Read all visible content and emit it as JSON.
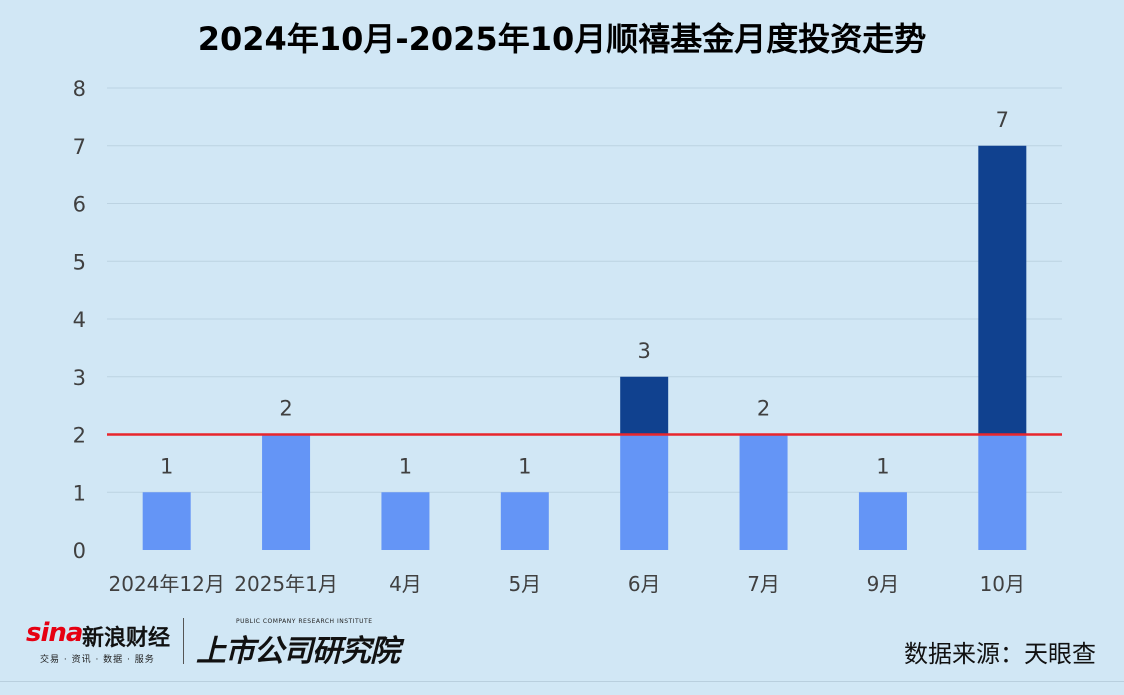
{
  "chart_data": {
    "type": "bar",
    "title": "2024年10月-2025年10月顺禧基金月度投资走势",
    "categories": [
      "2024年12月",
      "2025年1月",
      "4月",
      "5月",
      "6月",
      "7月",
      "9月",
      "10月"
    ],
    "values": [
      1,
      2,
      1,
      1,
      3,
      2,
      1,
      7
    ],
    "data_labels": [
      "1",
      "2",
      "1",
      "1",
      "3",
      "2",
      "1",
      "7"
    ],
    "reference_line": 2,
    "ylim": [
      0,
      8
    ],
    "yticks": [
      "0",
      "1",
      "2",
      "3",
      "4",
      "5",
      "6",
      "7",
      "8"
    ],
    "grid": true,
    "legend": "none",
    "colors": {
      "base": "#6495f6",
      "above_reference": "#10418f",
      "reference_line": "#e8262d",
      "grid": "#bcd3e2",
      "text": "#404040"
    }
  },
  "footer": {
    "sina_mark": "sina",
    "sina_name": "新浪财经",
    "sina_tagline": "交易 · 资讯 · 数据 · 服务",
    "institute_en": "PUBLIC COMPANY RESEARCH INSTITUTE",
    "institute_cn": "上市公司研究院",
    "source": "数据来源：天眼查"
  }
}
